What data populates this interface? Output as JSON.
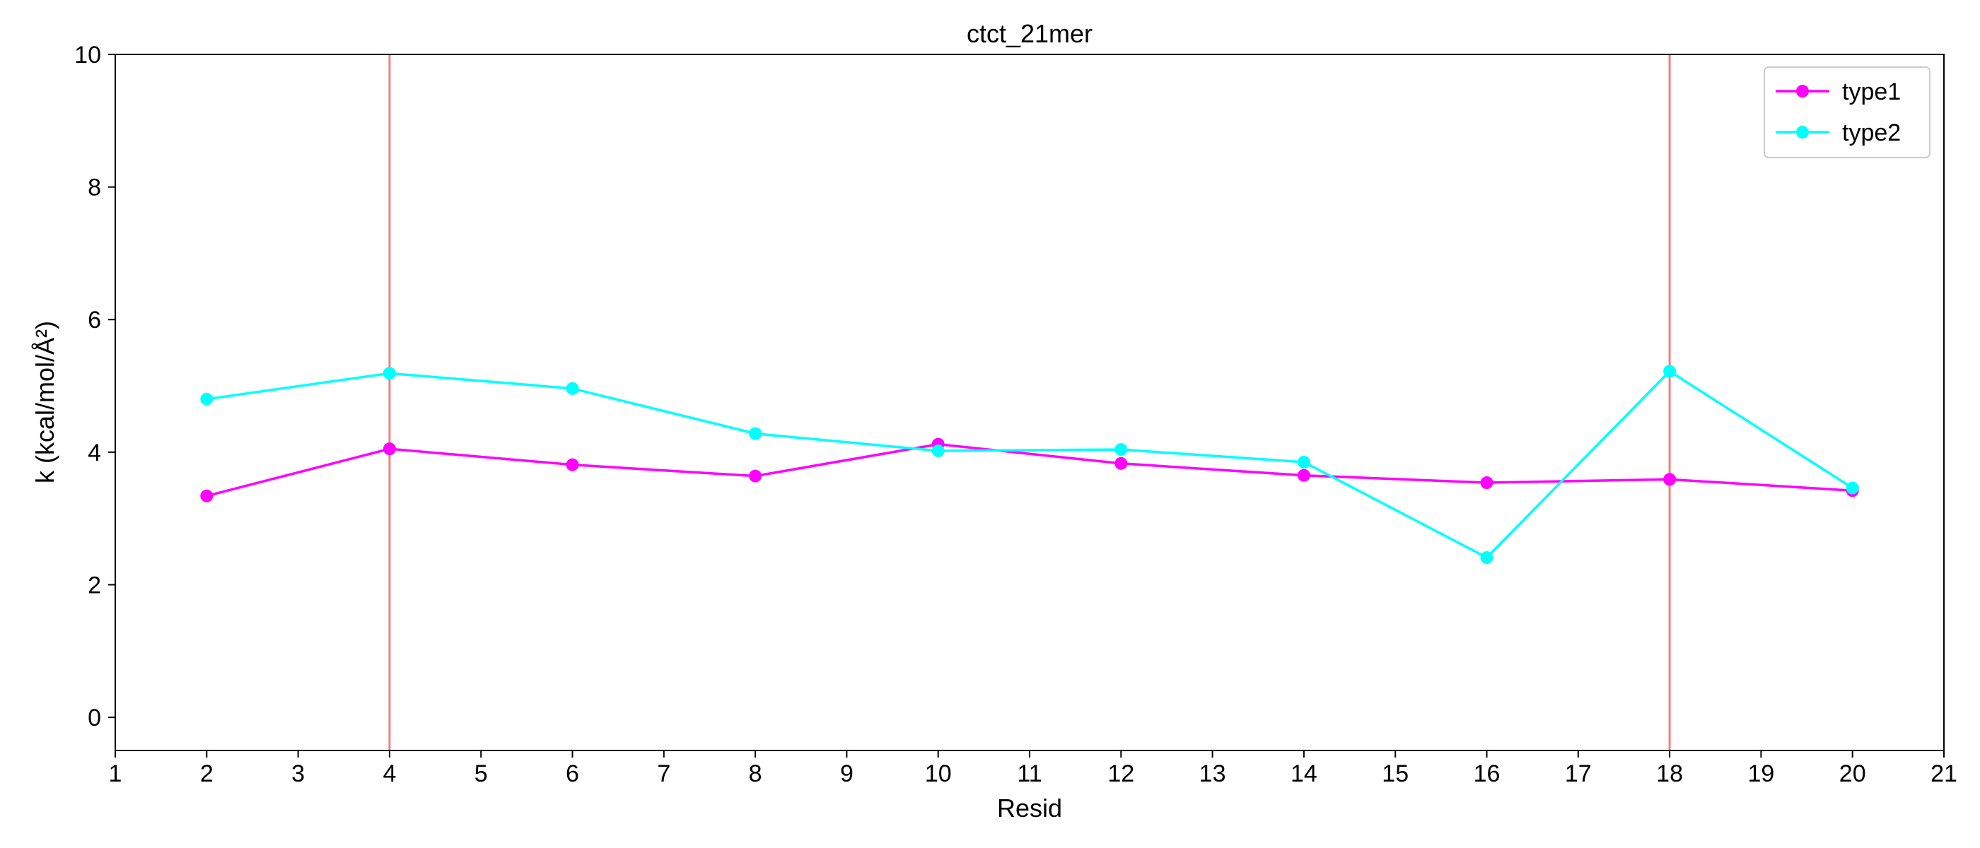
{
  "chart_data": {
    "type": "line",
    "title": "ctct_21mer",
    "xlabel": "Resid",
    "ylabel": "k (kcal/mol/Å²)",
    "xlim": [
      1,
      21
    ],
    "ylim": [
      -0.5,
      10
    ],
    "xticks": [
      1,
      2,
      3,
      4,
      5,
      6,
      7,
      8,
      9,
      10,
      11,
      12,
      13,
      14,
      15,
      16,
      17,
      18,
      19,
      20,
      21
    ],
    "yticks": [
      0,
      2,
      4,
      6,
      8,
      10
    ],
    "grid": false,
    "legend_position": "top-right",
    "x": [
      2,
      4,
      6,
      8,
      10,
      12,
      14,
      16,
      18,
      20
    ],
    "series": [
      {
        "name": "type1",
        "color": "#ff00ff",
        "values": [
          3.34,
          4.05,
          3.81,
          3.64,
          4.12,
          3.83,
          3.65,
          3.54,
          3.59,
          3.42
        ]
      },
      {
        "name": "type2",
        "color": "#00ffff",
        "values": [
          4.8,
          5.19,
          4.96,
          4.28,
          4.02,
          4.04,
          3.85,
          2.41,
          5.22,
          3.46
        ]
      }
    ],
    "vertical_lines": [
      {
        "x": 4,
        "color": "#f08080"
      },
      {
        "x": 18,
        "color": "#f08080"
      }
    ]
  }
}
